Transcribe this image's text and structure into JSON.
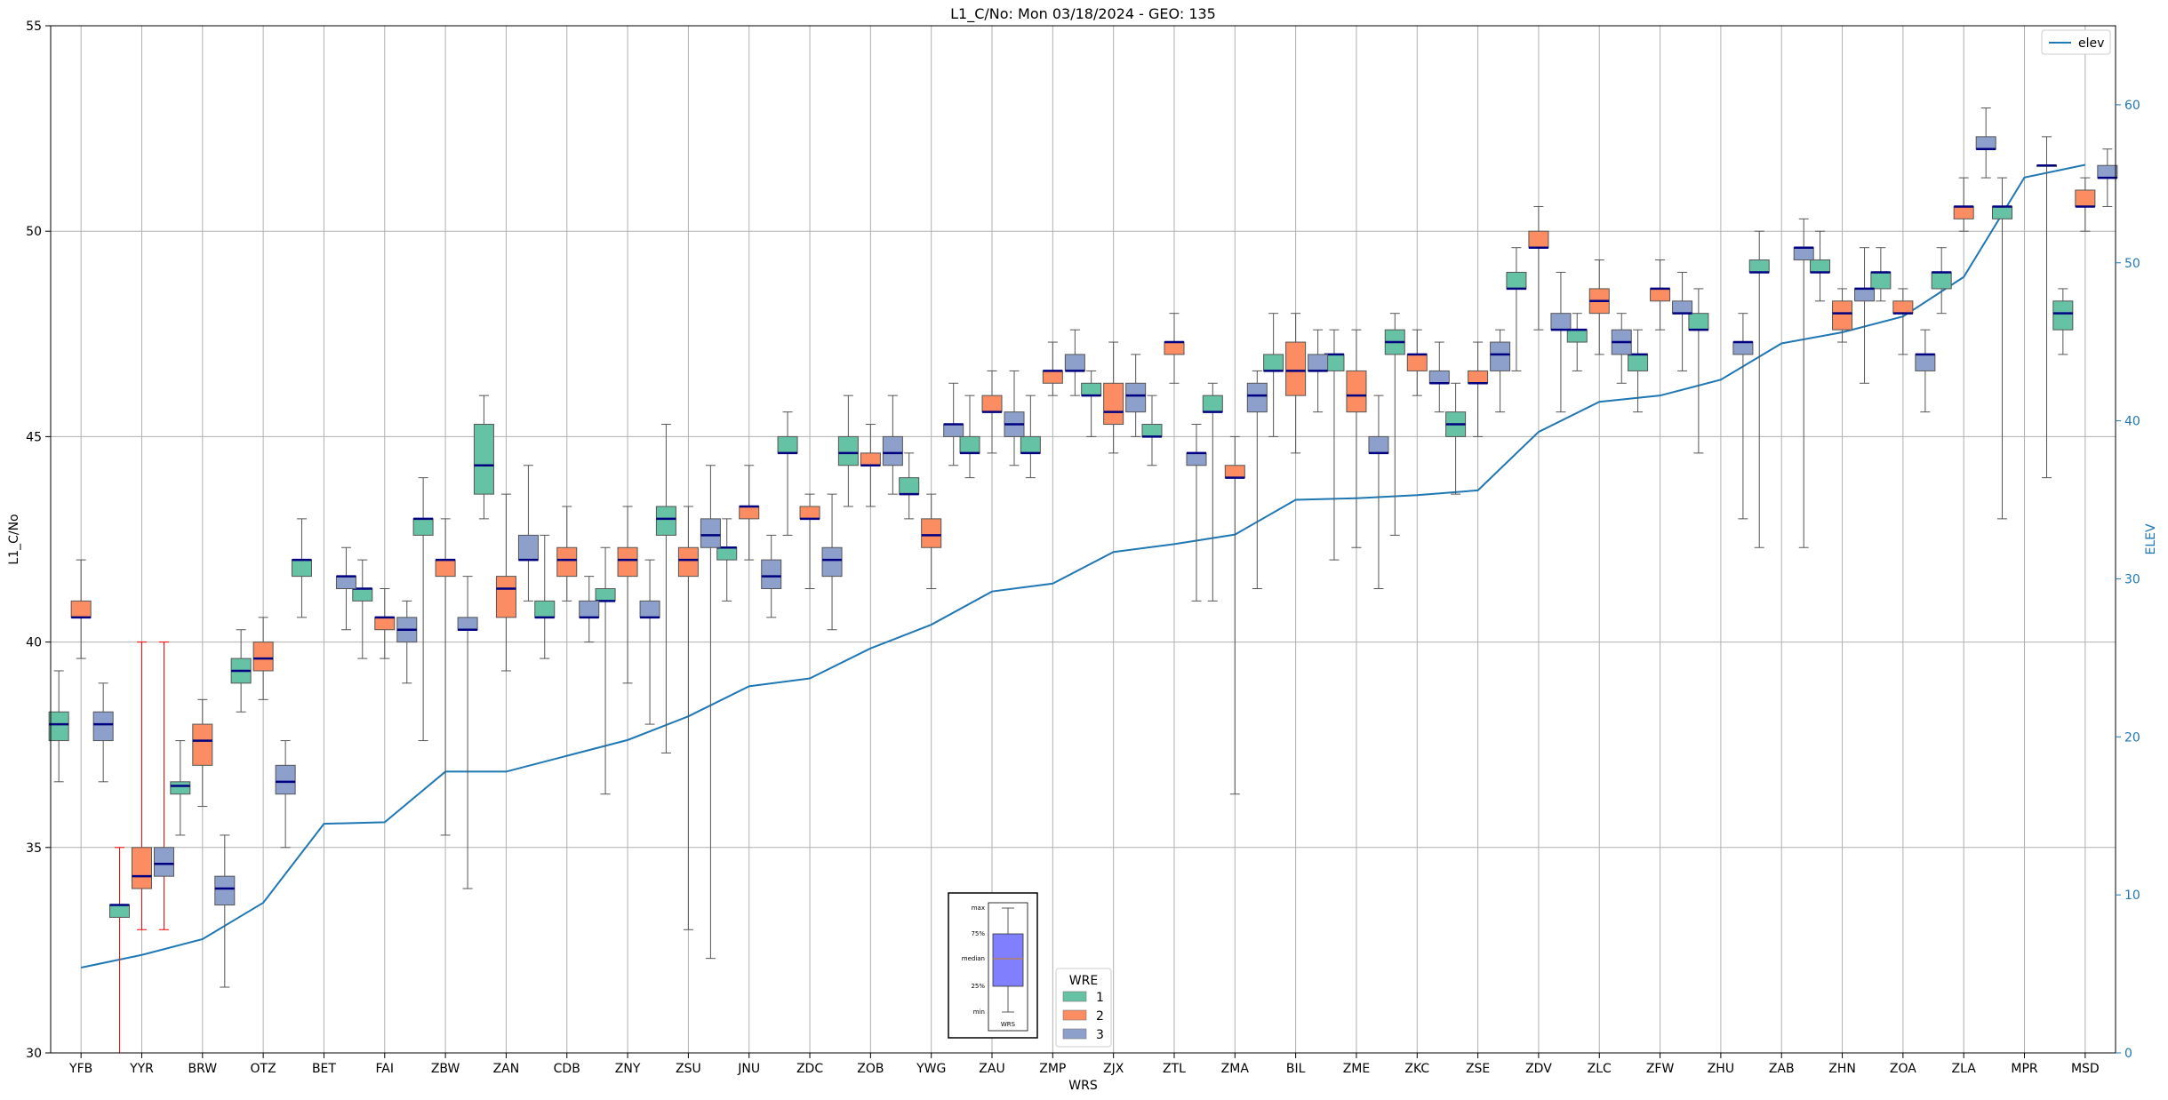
{
  "chart_data": {
    "type": "box",
    "title": "L1_C/No: Mon 03/18/2024 - GEO: 135",
    "xlabel": "WRS",
    "ylabel": "L1_C/No",
    "ylabel_right": "ELEV",
    "ylim": [
      30,
      55
    ],
    "ylim_right": [
      0,
      65
    ],
    "yticks": [
      30,
      35,
      40,
      45,
      50,
      55
    ],
    "yticks_right": [
      0,
      10,
      20,
      30,
      40,
      50,
      60
    ],
    "grid": true,
    "categories": [
      "YFB",
      "YYR",
      "BRW",
      "OTZ",
      "BET",
      "FAI",
      "ZBW",
      "ZAN",
      "CDB",
      "ZNY",
      "ZSU",
      "JNU",
      "ZDC",
      "ZOB",
      "YWG",
      "ZAU",
      "ZMP",
      "ZJX",
      "ZTL",
      "ZMA",
      "BIL",
      "ZME",
      "ZKC",
      "ZSE",
      "ZDV",
      "ZLC",
      "ZFW",
      "ZHU",
      "ZAB",
      "ZHN",
      "ZOA",
      "ZLA",
      "MPR",
      "MSD"
    ],
    "elev": [
      5.4,
      6.2,
      7.2,
      9.5,
      14.5,
      14.6,
      17.8,
      17.8,
      18.8,
      19.8,
      21.3,
      23.2,
      23.7,
      25.6,
      27.1,
      29.2,
      29.7,
      31.7,
      32.2,
      32.8,
      35.0,
      35.1,
      35.3,
      35.6,
      39.3,
      41.2,
      41.6,
      42.6,
      44.9,
      45.6,
      46.6,
      49.1,
      55.4,
      56.2
    ],
    "series": [
      {
        "name": "1",
        "color": "#66c2a5",
        "boxes": [
          [
            0,
            36.6,
            37.6,
            38.0,
            38.3,
            39.3
          ],
          [
            1,
            30.0,
            33.3,
            33.6,
            33.6,
            35.0
          ],
          [
            2,
            35.3,
            36.3,
            36.5,
            36.6,
            37.6
          ],
          [
            3,
            38.3,
            39.0,
            39.3,
            39.6,
            40.3
          ],
          [
            4,
            40.6,
            41.6,
            42.0,
            42.0,
            43.0
          ],
          [
            5,
            39.6,
            41.0,
            41.3,
            41.3,
            42.0
          ],
          [
            6,
            37.6,
            42.6,
            43.0,
            43.0,
            44.0
          ],
          [
            7,
            43.0,
            43.6,
            44.3,
            45.3,
            46.0
          ],
          [
            8,
            39.6,
            40.6,
            40.6,
            41.0,
            42.6
          ],
          [
            9,
            36.3,
            41.0,
            41.0,
            41.3,
            42.3
          ],
          [
            10,
            37.3,
            42.6,
            43.0,
            43.3,
            45.3
          ],
          [
            11,
            41.0,
            42.0,
            42.3,
            42.3,
            43.0
          ],
          [
            12,
            42.6,
            44.6,
            44.6,
            45.0,
            45.6
          ],
          [
            13,
            43.3,
            44.3,
            44.6,
            45.0,
            46.0
          ],
          [
            14,
            43.0,
            43.6,
            43.6,
            44.0,
            44.6
          ],
          [
            15,
            44.0,
            44.6,
            44.6,
            45.0,
            46.0
          ],
          [
            16,
            44.0,
            44.6,
            44.6,
            45.0,
            46.0
          ],
          [
            17,
            45.0,
            46.0,
            46.0,
            46.3,
            46.6
          ],
          [
            18,
            44.3,
            45.0,
            45.0,
            45.3,
            46.0
          ],
          [
            19,
            41.0,
            45.6,
            45.6,
            46.0,
            46.3
          ],
          [
            20,
            45.0,
            46.6,
            46.6,
            47.0,
            48.0
          ],
          [
            21,
            42.0,
            46.6,
            47.0,
            47.0,
            47.6
          ],
          [
            22,
            42.6,
            47.0,
            47.3,
            47.6,
            48.0
          ],
          [
            23,
            43.6,
            45.0,
            45.3,
            45.6,
            46.3
          ],
          [
            24,
            46.6,
            48.6,
            48.6,
            49.0,
            49.6
          ],
          [
            25,
            46.6,
            47.3,
            47.6,
            47.6,
            48.0
          ],
          [
            26,
            45.6,
            46.6,
            47.0,
            47.0,
            47.6
          ],
          [
            27,
            44.6,
            47.6,
            47.6,
            48.0,
            48.6
          ],
          [
            28,
            42.3,
            49.0,
            49.0,
            49.3,
            50.0
          ],
          [
            29,
            48.3,
            49.0,
            49.0,
            49.3,
            50.0
          ],
          [
            30,
            48.3,
            48.6,
            49.0,
            49.0,
            49.6
          ],
          [
            31,
            48.0,
            48.6,
            49.0,
            49.0,
            49.6
          ],
          [
            32,
            43.0,
            50.3,
            50.6,
            50.6,
            51.3
          ],
          [
            33,
            47.0,
            47.6,
            48.0,
            48.3,
            48.6
          ]
        ]
      },
      {
        "name": "2",
        "color": "#fc8d62",
        "boxes": [
          [
            0,
            39.6,
            40.6,
            40.6,
            41.0,
            42.0
          ],
          [
            1,
            33.0,
            34.0,
            34.3,
            35.0,
            40.0
          ],
          [
            2,
            36.0,
            37.0,
            37.6,
            38.0,
            38.6
          ],
          [
            3,
            38.6,
            39.3,
            39.6,
            40.0,
            40.6
          ],
          [
            5,
            39.6,
            40.3,
            40.6,
            40.6,
            41.3
          ],
          [
            6,
            35.3,
            41.6,
            42.0,
            42.0,
            43.0
          ],
          [
            7,
            39.3,
            40.6,
            41.3,
            41.6,
            43.6
          ],
          [
            8,
            41.0,
            41.6,
            42.0,
            42.3,
            43.3
          ],
          [
            9,
            39.0,
            41.6,
            42.0,
            42.3,
            43.3
          ],
          [
            10,
            33.0,
            41.6,
            42.0,
            42.3,
            43.3
          ],
          [
            11,
            42.0,
            43.0,
            43.3,
            43.3,
            44.3
          ],
          [
            12,
            41.3,
            43.0,
            43.0,
            43.3,
            43.6
          ],
          [
            13,
            43.3,
            44.3,
            44.3,
            44.6,
            45.3
          ],
          [
            14,
            41.3,
            42.3,
            42.6,
            43.0,
            43.6
          ],
          [
            15,
            44.6,
            45.6,
            45.6,
            46.0,
            46.6
          ],
          [
            16,
            46.0,
            46.3,
            46.6,
            46.6,
            47.3
          ],
          [
            17,
            44.6,
            45.3,
            45.6,
            46.3,
            47.3
          ],
          [
            18,
            46.3,
            47.0,
            47.3,
            47.3,
            48.0
          ],
          [
            19,
            36.3,
            44.0,
            44.0,
            44.3,
            45.0
          ],
          [
            20,
            44.6,
            46.0,
            46.6,
            47.3,
            48.0
          ],
          [
            21,
            42.3,
            45.6,
            46.0,
            46.6,
            47.6
          ],
          [
            22,
            46.0,
            46.6,
            47.0,
            47.0,
            47.6
          ],
          [
            23,
            45.0,
            46.3,
            46.3,
            46.6,
            47.3
          ],
          [
            24,
            47.6,
            49.6,
            49.6,
            50.0,
            50.6
          ],
          [
            25,
            47.0,
            48.0,
            48.3,
            48.6,
            49.3
          ],
          [
            26,
            47.6,
            48.3,
            48.6,
            48.6,
            49.3
          ],
          [
            29,
            47.3,
            47.6,
            48.0,
            48.3,
            48.6
          ],
          [
            30,
            47.0,
            48.0,
            48.0,
            48.3,
            48.6
          ],
          [
            31,
            50.0,
            50.3,
            50.6,
            50.6,
            51.3
          ],
          [
            33,
            50.0,
            50.6,
            50.6,
            51.0,
            51.3
          ]
        ]
      },
      {
        "name": "3",
        "color": "#8da0cb",
        "boxes": [
          [
            0,
            36.6,
            37.6,
            38.0,
            38.3,
            39.0
          ],
          [
            1,
            33.0,
            34.3,
            34.6,
            35.0,
            40.0
          ],
          [
            2,
            31.6,
            33.6,
            34.0,
            34.3,
            35.3
          ],
          [
            3,
            35.0,
            36.3,
            36.6,
            37.0,
            37.6
          ],
          [
            4,
            40.3,
            41.3,
            41.6,
            41.6,
            42.3
          ],
          [
            5,
            39.0,
            40.0,
            40.3,
            40.6,
            41.0
          ],
          [
            6,
            34.0,
            40.3,
            40.3,
            40.6,
            41.6
          ],
          [
            7,
            41.0,
            42.0,
            42.0,
            42.6,
            44.3
          ],
          [
            8,
            40.0,
            40.6,
            40.6,
            41.0,
            41.6
          ],
          [
            9,
            38.0,
            40.6,
            40.6,
            41.0,
            42.0
          ],
          [
            10,
            32.3,
            42.3,
            42.6,
            43.0,
            44.3
          ],
          [
            11,
            40.6,
            41.3,
            41.6,
            42.0,
            42.6
          ],
          [
            12,
            40.3,
            41.6,
            42.0,
            42.3,
            43.6
          ],
          [
            13,
            43.6,
            44.3,
            44.6,
            45.0,
            46.0
          ],
          [
            14,
            44.3,
            45.0,
            45.3,
            45.3,
            46.3
          ],
          [
            15,
            44.3,
            45.0,
            45.3,
            45.6,
            46.6
          ],
          [
            16,
            46.0,
            46.6,
            46.6,
            47.0,
            47.6
          ],
          [
            17,
            45.0,
            45.6,
            46.0,
            46.3,
            47.0
          ],
          [
            18,
            41.0,
            44.3,
            44.6,
            44.6,
            45.3
          ],
          [
            19,
            41.3,
            45.6,
            46.0,
            46.3,
            46.6
          ],
          [
            20,
            45.6,
            46.6,
            46.6,
            47.0,
            47.6
          ],
          [
            21,
            41.3,
            44.6,
            44.6,
            45.0,
            46.0
          ],
          [
            22,
            45.6,
            46.3,
            46.3,
            46.6,
            47.3
          ],
          [
            23,
            45.6,
            46.6,
            47.0,
            47.3,
            47.6
          ],
          [
            24,
            45.6,
            47.6,
            47.6,
            48.0,
            49.0
          ],
          [
            25,
            46.3,
            47.0,
            47.3,
            47.6,
            48.0
          ],
          [
            26,
            46.6,
            48.0,
            48.0,
            48.3,
            49.0
          ],
          [
            27,
            43.0,
            47.0,
            47.3,
            47.3,
            48.0
          ],
          [
            28,
            42.3,
            49.3,
            49.6,
            49.6,
            50.3
          ],
          [
            29,
            46.3,
            48.3,
            48.6,
            48.6,
            49.6
          ],
          [
            30,
            45.6,
            46.6,
            47.0,
            47.0,
            47.6
          ],
          [
            31,
            51.3,
            52.0,
            52.0,
            52.3,
            53.0
          ],
          [
            32,
            44.0,
            51.6,
            51.6,
            51.6,
            52.3
          ],
          [
            33,
            50.6,
            51.3,
            51.3,
            51.6,
            52.0
          ]
        ]
      }
    ],
    "highlight_box": {
      "category": 1,
      "whisker_color": "#ff0000"
    },
    "median_color": "#000080",
    "line_series": {
      "name": "elev",
      "color": "#1f77b4",
      "axis": "right"
    },
    "legend_line": {
      "placement": "top-right",
      "entries": [
        "elev"
      ]
    },
    "legend_boxes": {
      "placement": "bottom-center",
      "title": "WRE",
      "entries": [
        "1",
        "2",
        "3"
      ]
    },
    "inset": {
      "labels": [
        "max",
        "75%",
        "median",
        "25%",
        "min"
      ],
      "caption": "WRS",
      "box_color": "#8080ff",
      "median_color": "#c08040"
    }
  }
}
